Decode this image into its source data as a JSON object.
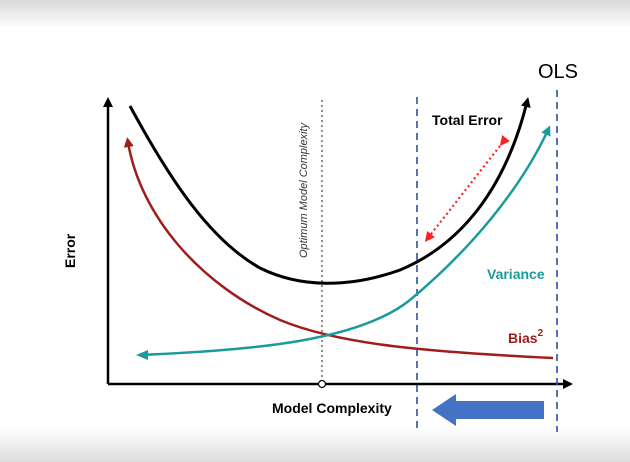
{
  "diagram": {
    "ols_label": "OLS",
    "y_axis_label": "Error",
    "x_axis_label": "Model Complexity",
    "optimum_label": "Optimum Model Complexity",
    "curves": {
      "total_error": {
        "label": "Total Error",
        "color": "#000000"
      },
      "variance": {
        "label": "Variance",
        "color": "#1a9a9a"
      },
      "bias": {
        "label": "Bias",
        "superscript": "2",
        "color": "#a01d1d"
      }
    },
    "colors": {
      "dashed_lines": "#2a4ea8",
      "arrow": "#4472c4",
      "dotted_arrow": "#ff2020",
      "optimum_line": "#555555"
    }
  }
}
